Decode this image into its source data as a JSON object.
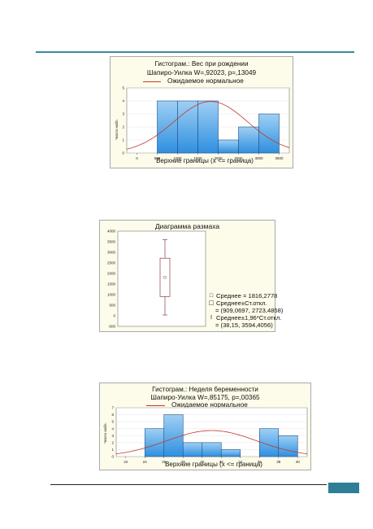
{
  "chart_data": [
    {
      "type": "bar",
      "title": "Гистограм.: Вес при рождении",
      "subtitle": "Шапиро-Уилка W=,92023, p=,13049",
      "legend": "Ожидаемое нормальное",
      "xlabel": "Верхние границы (x <= граница)",
      "ylabel": "Число набл.",
      "x_ticks": [
        "0",
        "500",
        "1000",
        "1500",
        "2000",
        "2500",
        "3000",
        "3500"
      ],
      "y_ticks": [
        "0",
        "1",
        "2",
        "3",
        "4",
        "5"
      ],
      "bins": [
        [
          0,
          500
        ],
        [
          500,
          1000
        ],
        [
          1000,
          1500
        ],
        [
          1500,
          2000
        ],
        [
          2000,
          2500
        ],
        [
          2500,
          3000
        ],
        [
          3000,
          3500
        ]
      ],
      "values": [
        0,
        4,
        4,
        4,
        1,
        2,
        3
      ],
      "xlim": [
        -250,
        3750
      ],
      "ylim": [
        0,
        5
      ],
      "normal_curve": {
        "mean": 1816.28,
        "sd": 907.19,
        "n": 18,
        "binwidth": 500
      }
    },
    {
      "type": "box",
      "title": "Диаграмма размаха",
      "y_ticks": [
        "4000",
        "3500",
        "3000",
        "2500",
        "2000",
        "1500",
        "1000",
        "500",
        "0",
        "-500"
      ],
      "ylim": [
        -500,
        4000
      ],
      "mean": 1816.2778,
      "box": [
        909.0697,
        2723.4858
      ],
      "whiskers": [
        38.15,
        3594.4056
      ],
      "legend": [
        {
          "symbol": "□",
          "text": "Среднее = 1816,2778"
        },
        {
          "symbol": "□",
          "text": "Среднее±Ст.откл."
        },
        {
          "symbol": "",
          "text": "= (909,0697, 2723,4858)"
        },
        {
          "symbol": "I",
          "text": "Среднее±1,96*Ст.откл."
        },
        {
          "symbol": "",
          "text": "= (38,15, 3594,4056)"
        }
      ]
    },
    {
      "type": "bar",
      "title": "Гистограм.: Неделя беременности",
      "subtitle": "Шапиро-Уилка W=,85175, p=,00365",
      "legend": "Ожидаемое нормальное",
      "xlabel": "Верхние границы (x <= граница)",
      "ylabel": "Число набл.",
      "x_ticks": [
        "22",
        "24",
        "26",
        "28",
        "30",
        "32",
        "34",
        "36",
        "38",
        "40"
      ],
      "y_ticks": [
        "0",
        "1",
        "2",
        "3",
        "4",
        "5",
        "6",
        "7"
      ],
      "bins": [
        [
          22,
          24
        ],
        [
          24,
          26
        ],
        [
          26,
          28
        ],
        [
          28,
          30
        ],
        [
          30,
          32
        ],
        [
          32,
          34
        ],
        [
          34,
          36
        ],
        [
          36,
          38
        ],
        [
          38,
          40
        ]
      ],
      "values": [
        0,
        4,
        6,
        2,
        2,
        1,
        0,
        4,
        3
      ],
      "xlim": [
        21,
        41
      ],
      "ylim": [
        0,
        7
      ],
      "normal_curve": {
        "mean": 31.0,
        "sd": 4.7,
        "n": 22,
        "binwidth": 2
      }
    }
  ]
}
